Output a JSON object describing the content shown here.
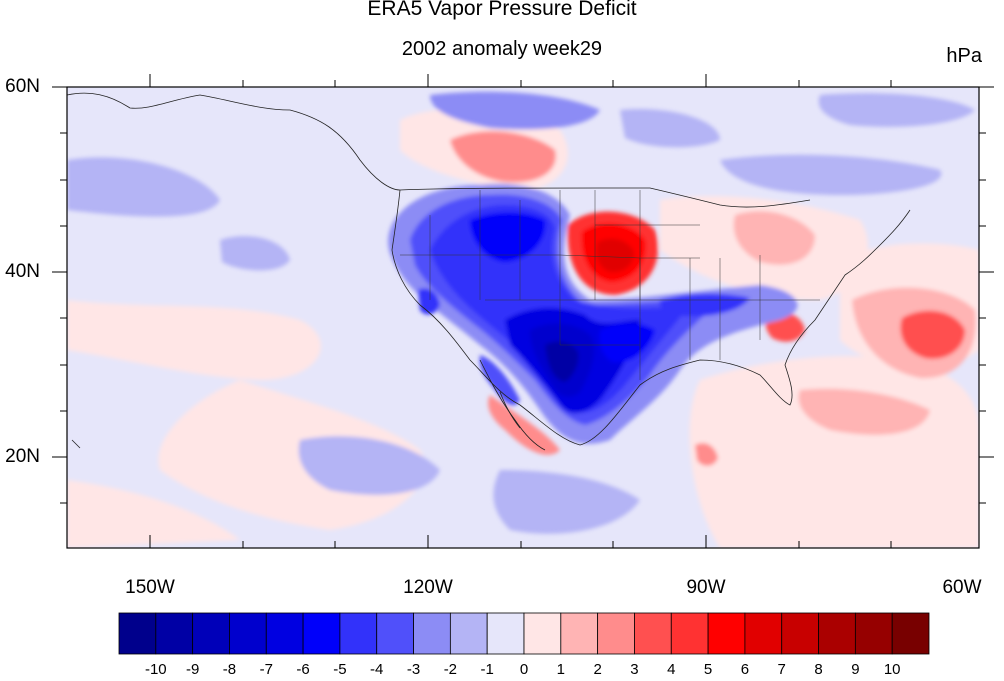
{
  "title": "ERA5 Vapor Pressure Deficit",
  "subtitle": "2002 anomaly week29",
  "units": "hPa",
  "map": {
    "projection": "cylindrical equidistant",
    "lon_range": [
      -160,
      -60
    ],
    "lat_range": [
      10,
      60
    ],
    "x_ticks": [
      "150W",
      "120W",
      "90W",
      "60W"
    ],
    "y_ticks": [
      "20N",
      "40N",
      "60N"
    ]
  },
  "colorbar": {
    "labels": [
      "-10",
      "-9",
      "-8",
      "-7",
      "-6",
      "-5",
      "-4",
      "-3",
      "-2",
      "-1",
      "0",
      "1",
      "2",
      "3",
      "4",
      "5",
      "6",
      "7",
      "8",
      "9",
      "10"
    ],
    "colors": [
      "#00008c",
      "#0000a5",
      "#0000b9",
      "#0000cd",
      "#0000e1",
      "#0000fa",
      "#3232fa",
      "#5050fa",
      "#8c8cf5",
      "#b4b4f5",
      "#e6e6fa",
      "#ffe6e6",
      "#ffb4b4",
      "#ff8c8c",
      "#ff5050",
      "#ff3232",
      "#ff0000",
      "#e10000",
      "#c80000",
      "#aa0000",
      "#960000",
      "#780000"
    ]
  }
}
